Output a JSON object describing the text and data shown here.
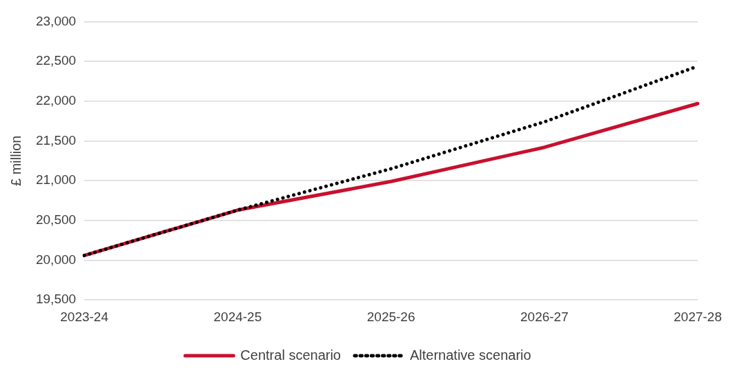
{
  "chart_data": {
    "type": "line",
    "ylabel": "£ million",
    "categories": [
      "2023-24",
      "2024-25",
      "2025-26",
      "2026-27",
      "2027-28"
    ],
    "series": [
      {
        "name": "Central scenario",
        "color": "#c8102e",
        "values": [
          20060,
          20630,
          20990,
          21420,
          21970
        ],
        "line_style": "solid"
      },
      {
        "name": "Alternative scenario",
        "color": "#000000",
        "values": [
          20060,
          20630,
          21150,
          21740,
          22440
        ],
        "line_style": "dotted"
      }
    ],
    "ylim": [
      19500,
      23000
    ],
    "yticks": [
      {
        "value": 19500,
        "label": "19,500"
      },
      {
        "value": 20000,
        "label": "20,000"
      },
      {
        "value": 20500,
        "label": "20,500"
      },
      {
        "value": 21000,
        "label": "21,000"
      },
      {
        "value": 21500,
        "label": "21,500"
      },
      {
        "value": 22000,
        "label": "22,000"
      },
      {
        "value": 22500,
        "label": "22,500"
      },
      {
        "value": 23000,
        "label": "23,000"
      }
    ],
    "grid": "y",
    "legend": "bottom",
    "marker": "none"
  }
}
